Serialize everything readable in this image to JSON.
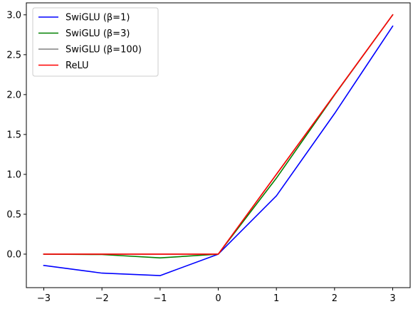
{
  "chart_data": {
    "type": "line",
    "title": "",
    "xlabel": "",
    "ylabel": "",
    "x": [
      -3,
      -2,
      -1,
      0,
      1,
      2,
      3
    ],
    "xlim": [
      -3.3,
      3.3
    ],
    "ylim": [
      -0.42,
      3.15
    ],
    "xticks": [
      -3,
      -2,
      -1,
      0,
      1,
      2,
      3
    ],
    "xtick_labels": [
      "−3",
      "−2",
      "−1",
      "0",
      "1",
      "2",
      "3"
    ],
    "yticks": [
      0.0,
      0.5,
      1.0,
      1.5,
      2.0,
      2.5,
      3.0
    ],
    "ytick_labels": [
      "0.0",
      "0.5",
      "1.0",
      "1.5",
      "2.0",
      "2.5",
      "3.0"
    ],
    "grid": false,
    "legend_position": "upper left",
    "series": [
      {
        "name": "SwiGLU (β=1)",
        "color": "#0000ff",
        "values": [
          -0.142,
          -0.238,
          -0.269,
          0.0,
          0.731,
          1.762,
          2.858
        ]
      },
      {
        "name": "SwiGLU (β=3)",
        "color": "#008000",
        "values": [
          -0.0004,
          -0.005,
          -0.047,
          0.0,
          0.953,
          1.995,
          3.0
        ]
      },
      {
        "name": "SwiGLU (β=100)",
        "color": "#808080",
        "values": [
          0.0,
          0.0,
          0.0,
          0.0,
          1.0,
          2.0,
          3.0
        ]
      },
      {
        "name": "ReLU",
        "color": "#ff0000",
        "values": [
          0.0,
          0.0,
          0.0,
          0.0,
          1.0,
          2.0,
          3.0
        ]
      }
    ]
  }
}
